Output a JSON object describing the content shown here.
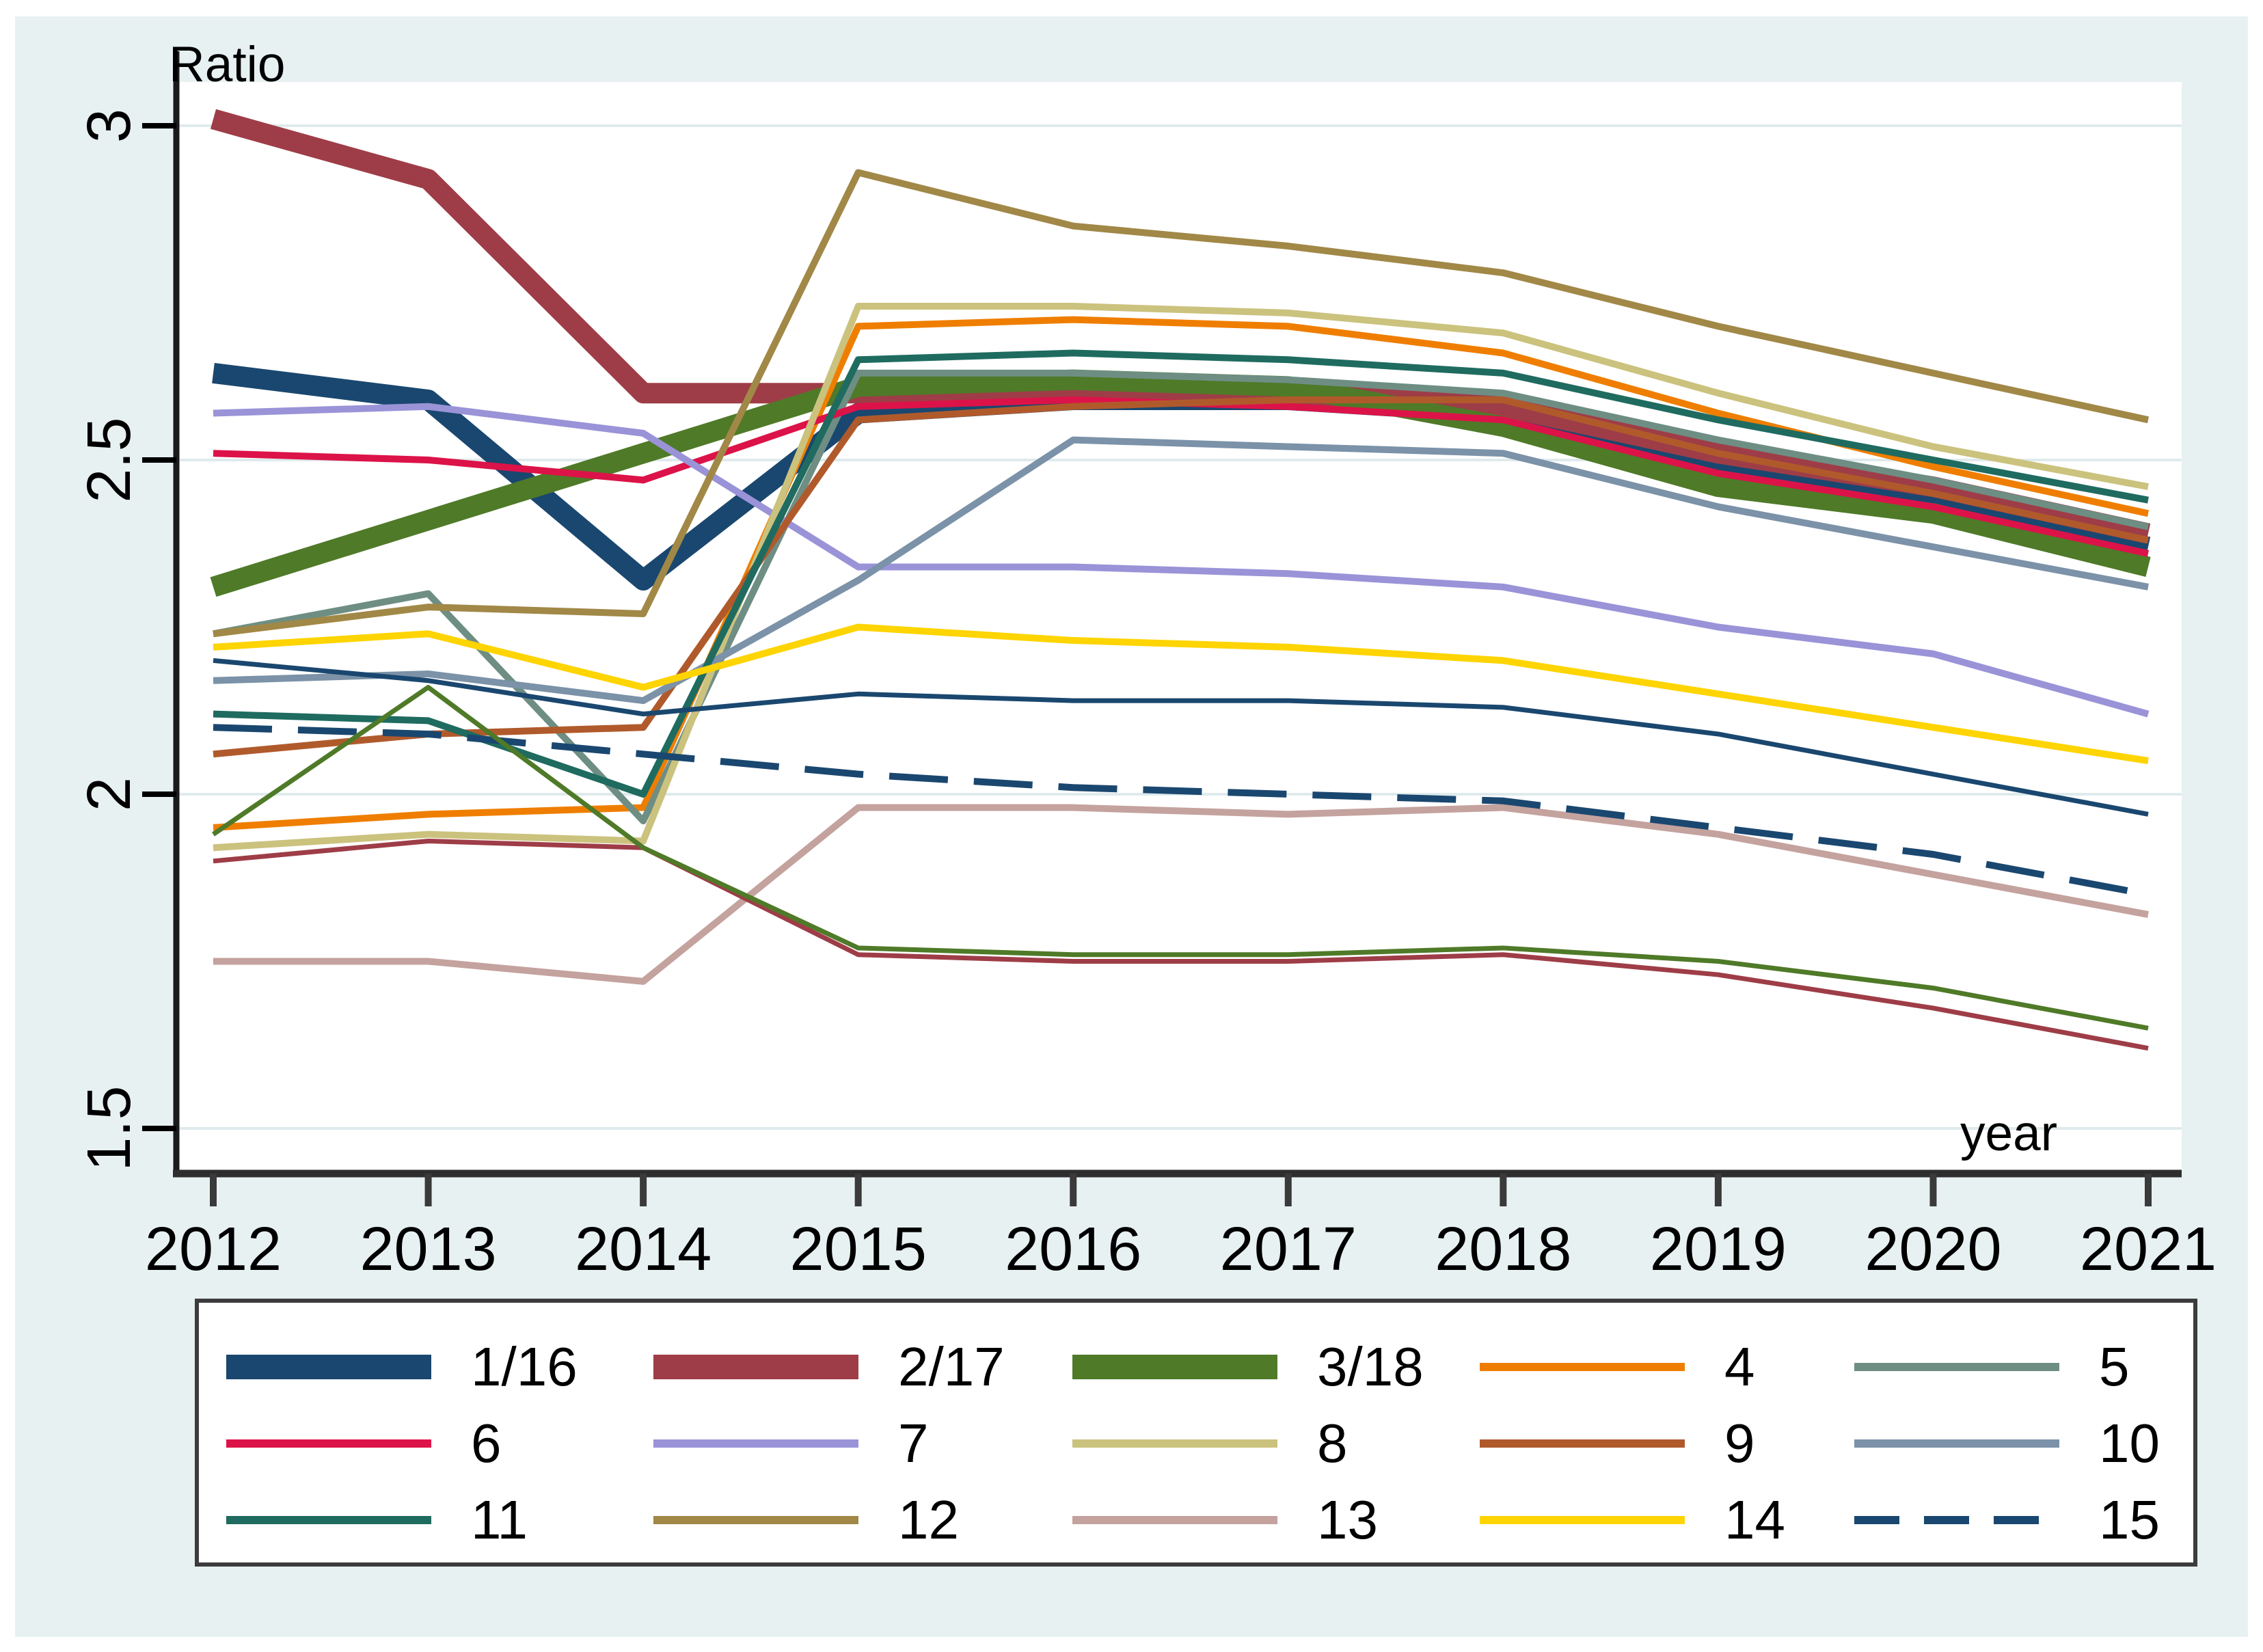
{
  "figure": {
    "background_color": "#e8f1f2",
    "plot_background_color": "#ffffff",
    "gridline_color": "#dfeaec",
    "axis_line_color": "#2e2e2e",
    "text_color": "#000000"
  },
  "chart_data": {
    "type": "line",
    "title": "",
    "ylabel": "Ratio",
    "xlabel": "year",
    "x": [
      2012,
      2013,
      2014,
      2015,
      2016,
      2017,
      2018,
      2019,
      2020,
      2021
    ],
    "x_tick_labels": [
      "2012",
      "2013",
      "2014",
      "2015",
      "2016",
      "2017",
      "2018",
      "2019",
      "2020",
      "2021"
    ],
    "y_ticks": [
      1.5,
      2,
      2.5,
      3
    ],
    "y_tick_labels": [
      "1.5",
      "2",
      "2.5",
      "3"
    ],
    "ylim": [
      1.43,
      3.07
    ],
    "grid": true,
    "legend_position": "bottom",
    "series": [
      {
        "name": "1",
        "color": "#1a476f",
        "weight": "thick",
        "dash": false,
        "values": [
          2.63,
          2.59,
          2.32,
          2.57,
          2.59,
          2.59,
          2.57,
          2.49,
          2.44,
          2.37
        ]
      },
      {
        "name": "2",
        "color": "#9e3d47",
        "weight": "thick",
        "dash": false,
        "values": [
          3.01,
          2.92,
          2.6,
          2.6,
          2.61,
          2.6,
          2.58,
          2.51,
          2.46,
          2.39
        ]
      },
      {
        "name": "3",
        "color": "#4f7a28",
        "weight": "thick",
        "dash": false,
        "values": [
          2.31,
          2.41,
          2.51,
          2.61,
          2.62,
          2.61,
          2.55,
          2.46,
          2.42,
          2.34
        ]
      },
      {
        "name": "4",
        "color": "#ef7e00",
        "weight": "medium",
        "dash": false,
        "values": [
          1.95,
          1.97,
          1.98,
          2.7,
          2.71,
          2.7,
          2.66,
          2.57,
          2.49,
          2.42
        ]
      },
      {
        "name": "5",
        "color": "#6e8e84",
        "weight": "medium",
        "dash": false,
        "values": [
          2.24,
          2.3,
          1.96,
          2.63,
          2.63,
          2.62,
          2.6,
          2.53,
          2.47,
          2.4
        ]
      },
      {
        "name": "6",
        "color": "#dc1348",
        "weight": "medium",
        "dash": false,
        "values": [
          2.51,
          2.5,
          2.47,
          2.58,
          2.59,
          2.58,
          2.56,
          2.48,
          2.43,
          2.36
        ]
      },
      {
        "name": "7",
        "color": "#9a93d8",
        "weight": "medium",
        "dash": false,
        "values": [
          2.57,
          2.58,
          2.54,
          2.34,
          2.34,
          2.33,
          2.31,
          2.25,
          2.21,
          2.12
        ]
      },
      {
        "name": "8",
        "color": "#cbc27e",
        "weight": "medium",
        "dash": false,
        "values": [
          1.92,
          1.94,
          1.93,
          2.73,
          2.73,
          2.72,
          2.69,
          2.6,
          2.52,
          2.46
        ]
      },
      {
        "name": "9",
        "color": "#b05a2c",
        "weight": "medium",
        "dash": false,
        "values": [
          2.06,
          2.09,
          2.1,
          2.56,
          2.58,
          2.59,
          2.59,
          2.51,
          2.45,
          2.38
        ]
      },
      {
        "name": "10",
        "color": "#7b92a8",
        "weight": "medium",
        "dash": false,
        "values": [
          2.17,
          2.18,
          2.14,
          2.32,
          2.53,
          2.52,
          2.51,
          2.43,
          2.37,
          2.31
        ]
      },
      {
        "name": "11",
        "color": "#1f6b60",
        "weight": "medium",
        "dash": false,
        "values": [
          2.12,
          2.11,
          2.0,
          2.65,
          2.66,
          2.65,
          2.63,
          2.56,
          2.5,
          2.44
        ]
      },
      {
        "name": "12",
        "color": "#a18847",
        "weight": "medium",
        "dash": false,
        "values": [
          2.24,
          2.28,
          2.27,
          2.93,
          2.85,
          2.82,
          2.78,
          2.7,
          2.63,
          2.56
        ]
      },
      {
        "name": "13",
        "color": "#c4a29e",
        "weight": "medium",
        "dash": false,
        "values": [
          1.75,
          1.75,
          1.72,
          1.98,
          1.98,
          1.97,
          1.98,
          1.94,
          1.88,
          1.82
        ]
      },
      {
        "name": "14",
        "color": "#fed402",
        "weight": "medium",
        "dash": false,
        "values": [
          2.22,
          2.24,
          2.16,
          2.25,
          2.23,
          2.22,
          2.2,
          2.15,
          2.1,
          2.05
        ]
      },
      {
        "name": "15",
        "color": "#1a476f",
        "weight": "medium",
        "dash": true,
        "values": [
          2.1,
          2.09,
          2.06,
          2.03,
          2.01,
          2.0,
          1.99,
          1.95,
          1.91,
          1.85
        ]
      },
      {
        "name": "16",
        "color": "#1a476f",
        "weight": "thin",
        "dash": false,
        "values": [
          2.2,
          2.17,
          2.12,
          2.15,
          2.14,
          2.14,
          2.13,
          2.09,
          2.03,
          1.97
        ]
      },
      {
        "name": "17",
        "color": "#9e3d47",
        "weight": "thin",
        "dash": false,
        "values": [
          1.9,
          1.93,
          1.92,
          1.76,
          1.75,
          1.75,
          1.76,
          1.73,
          1.68,
          1.62
        ]
      },
      {
        "name": "18",
        "color": "#4f7a28",
        "weight": "thin",
        "dash": false,
        "values": [
          1.94,
          2.16,
          1.92,
          1.77,
          1.76,
          1.76,
          1.77,
          1.75,
          1.71,
          1.65
        ]
      }
    ]
  },
  "legend": {
    "items": [
      {
        "label": "1/16",
        "color": "#1a476f",
        "thick": true,
        "dash": false
      },
      {
        "label": "2/17",
        "color": "#9e3d47",
        "thick": true,
        "dash": false
      },
      {
        "label": "3/18",
        "color": "#4f7a28",
        "thick": true,
        "dash": false
      },
      {
        "label": "4",
        "color": "#ef7e00",
        "thick": false,
        "dash": false
      },
      {
        "label": "5",
        "color": "#6e8e84",
        "thick": false,
        "dash": false
      },
      {
        "label": "6",
        "color": "#dc1348",
        "thick": false,
        "dash": false
      },
      {
        "label": "7",
        "color": "#9a93d8",
        "thick": false,
        "dash": false
      },
      {
        "label": "8",
        "color": "#cbc27e",
        "thick": false,
        "dash": false
      },
      {
        "label": "9",
        "color": "#b05a2c",
        "thick": false,
        "dash": false
      },
      {
        "label": "10",
        "color": "#7b92a8",
        "thick": false,
        "dash": false
      },
      {
        "label": "11",
        "color": "#1f6b60",
        "thick": false,
        "dash": false
      },
      {
        "label": "12",
        "color": "#a18847",
        "thick": false,
        "dash": false
      },
      {
        "label": "13",
        "color": "#c4a29e",
        "thick": false,
        "dash": false
      },
      {
        "label": "14",
        "color": "#fed402",
        "thick": false,
        "dash": false
      },
      {
        "label": "15",
        "color": "#1a476f",
        "thick": false,
        "dash": true
      }
    ]
  }
}
